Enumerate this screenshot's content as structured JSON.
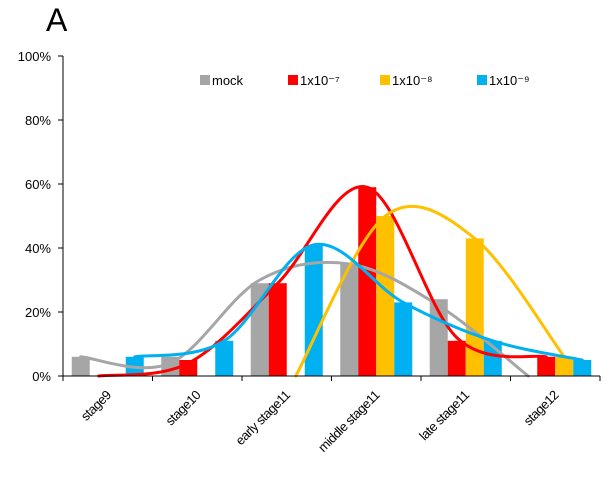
{
  "panel_label": "A",
  "chart_data": {
    "type": "bar",
    "categories": [
      "stage9",
      "stage10",
      "early stage11",
      "middle stage11",
      "late stage11",
      "stage12"
    ],
    "series": [
      {
        "name": "mock",
        "color": "#a6a6a6",
        "values": [
          6,
          6,
          29,
          35,
          24,
          0
        ]
      },
      {
        "name": "1x10⁻⁷",
        "color": "#ff0000",
        "values": [
          0,
          5,
          29,
          59,
          11,
          6
        ]
      },
      {
        "name": "1x10⁻⁸",
        "color": "#ffc000",
        "values": [
          0,
          0,
          0,
          50,
          43,
          6
        ]
      },
      {
        "name": "1x10⁻⁹",
        "color": "#00b0f0",
        "values": [
          6,
          11,
          41,
          23,
          11,
          5
        ]
      }
    ],
    "smooth_lines": [
      {
        "series": "mock",
        "color": "#a6a6a6",
        "values": [
          6,
          4,
          30,
          35,
          22,
          0
        ]
      },
      {
        "series": "1x10⁻⁷",
        "color": "#ff0000",
        "values": [
          0,
          4,
          29,
          59,
          12,
          6
        ]
      },
      {
        "series": "1x10⁻⁸",
        "color": "#ffc000",
        "values": [
          null,
          null,
          0,
          50,
          43,
          6
        ]
      },
      {
        "series": "1x10⁻⁹",
        "color": "#00b0f0",
        "values": [
          6,
          11,
          41,
          23,
          11,
          5
        ]
      }
    ],
    "ylim": [
      0,
      100
    ],
    "yticks": [
      "0%",
      "20%",
      "40%",
      "60%",
      "80%",
      "100%"
    ],
    "ytick_values": [
      0,
      20,
      40,
      60,
      80,
      100
    ],
    "xlabel": "",
    "ylabel": "",
    "legend_position": "top-right",
    "grid": false
  }
}
